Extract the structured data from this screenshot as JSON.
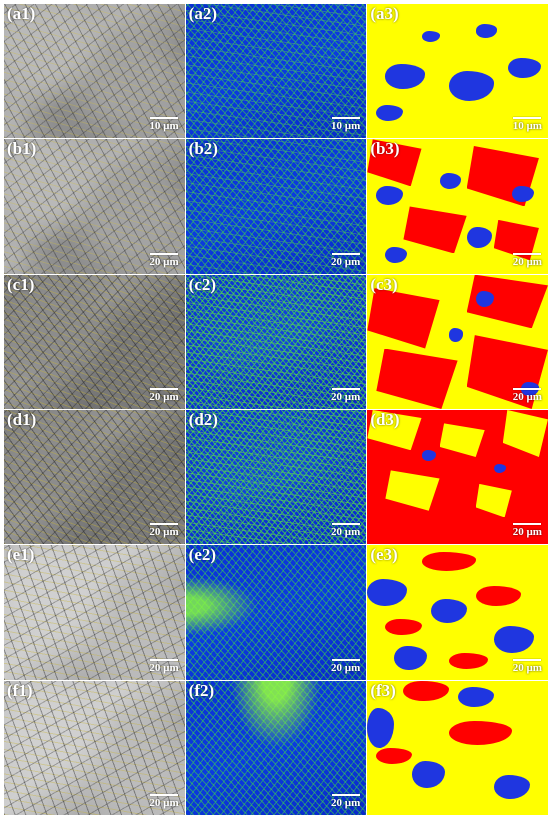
{
  "panels": [
    {
      "label": "(a1)",
      "scale": "10 µm",
      "type": "sem"
    },
    {
      "label": "(a2)",
      "scale": "10 µm",
      "type": "kam"
    },
    {
      "label": "(a3)",
      "scale": "10 µm",
      "type": "phase"
    },
    {
      "label": "(b1)",
      "scale": "20 µm",
      "type": "sem"
    },
    {
      "label": "(b2)",
      "scale": "20 µm",
      "type": "kam"
    },
    {
      "label": "(b3)",
      "scale": "20 µm",
      "type": "phase"
    },
    {
      "label": "(c1)",
      "scale": "20 µm",
      "type": "sem"
    },
    {
      "label": "(c2)",
      "scale": "20 µm",
      "type": "kam"
    },
    {
      "label": "(c3)",
      "scale": "20 µm",
      "type": "phase"
    },
    {
      "label": "(d1)",
      "scale": "20 µm",
      "type": "sem"
    },
    {
      "label": "(d2)",
      "scale": "20 µm",
      "type": "kam"
    },
    {
      "label": "(d3)",
      "scale": "20 µm",
      "type": "phase"
    },
    {
      "label": "(e1)",
      "scale": "20 µm",
      "type": "sem"
    },
    {
      "label": "(e2)",
      "scale": "20 µm",
      "type": "kam"
    },
    {
      "label": "(e3)",
      "scale": "20 µm",
      "type": "phase"
    },
    {
      "label": "(f1)",
      "scale": "20 µm",
      "type": "sem"
    },
    {
      "label": "(f2)",
      "scale": "20 µm",
      "type": "kam"
    },
    {
      "label": "(f3)",
      "scale": "",
      "type": "phase"
    }
  ],
  "colors": {
    "phase_yellow": "#ffff00",
    "phase_blue": "#1f36e0",
    "phase_red": "#ff0000",
    "kam_blue": "#0a2fd6",
    "kam_green": "#3cdc3c"
  }
}
